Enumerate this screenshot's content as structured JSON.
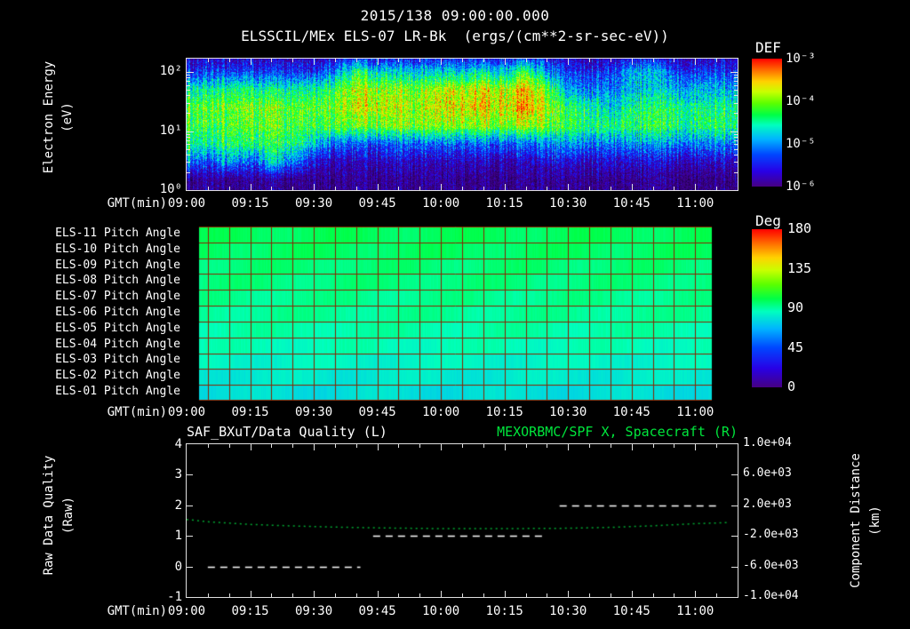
{
  "header": {
    "datetime": "2015/138 09:00:00.000",
    "instrument_title": "ELSSCIL/MEx ELS-07 LR-Bk  (ergs/(cm**2-sr-sec-eV))"
  },
  "axis": {
    "xlabel": "GMT(min)",
    "xticks": [
      "09:00",
      "09:15",
      "09:30",
      "09:45",
      "10:00",
      "10:15",
      "10:30",
      "10:45",
      "11:00"
    ]
  },
  "spectrogram_panel": {
    "ylabel_line1": "Electron Energy",
    "ylabel_line2": "(eV)",
    "yticks": [
      "10²",
      "10¹",
      "10⁰"
    ],
    "colorbar": {
      "title": "DEF",
      "ticks": [
        "10⁻³",
        "10⁻⁴",
        "10⁻⁵",
        "10⁻⁶"
      ]
    }
  },
  "pitch_panel": {
    "colorbar": {
      "title": "Deg",
      "ticks": [
        "180",
        "135",
        "90",
        "45",
        "0"
      ]
    }
  },
  "quality_panel": {
    "title_left": "SAF_BXuT/Data Quality (L)",
    "title_right": "MEXORBMC/SPF X, Spacecraft (R)",
    "ylabel_left_line1": "Raw Data Quality",
    "ylabel_left_line2": "(Raw)",
    "ylabel_right_line1": "Component Distance",
    "ylabel_right_line2": "(km)",
    "yticks_left": [
      "4",
      "3",
      "2",
      "1",
      "0",
      "-1"
    ],
    "yticks_right": [
      "1.0e+04",
      "6.0e+03",
      "2.0e+03",
      "-2.0e+03",
      "-6.0e+03",
      "-1.0e+04"
    ]
  },
  "colors": {
    "background": "#000000",
    "text": "#ffffff",
    "axis": "#e0e0e0",
    "title_green": "#00e63c",
    "series_green": "#00a832",
    "quality_white": "#ffffff",
    "grid_red": "#8a2300",
    "colormap": "rainbow"
  },
  "chart_data": [
    {
      "type": "heatmap",
      "name": "electron-energy-spectrogram",
      "title": "ELSSCIL/MEx ELS-07 LR-Bk",
      "units": "ergs/(cm**2-sr-sec-eV)",
      "colorbar_label": "DEF",
      "x_start_gmt": "09:00",
      "x_end_gmt": "11:10",
      "x_step_min": 5,
      "y_label": "Electron Energy (eV)",
      "y_scale": "log",
      "y_range_ev": [
        1,
        170
      ],
      "z_scale": "log",
      "z_log10_range": [
        -6,
        -3
      ],
      "energy_rows_ev": [
        1.5,
        3,
        6,
        12,
        25,
        50,
        100,
        200
      ],
      "log10_def_grid": [
        [
          -6.1,
          -6.0,
          -6.1,
          -6.1,
          -6.0,
          -6.1,
          -6.1,
          -6.1,
          -6.0,
          -6.1,
          -6.1,
          -6.1,
          -6.0,
          -6.1,
          -6.1,
          -6.1,
          -6.0,
          -6.1,
          -6.1,
          -6.0,
          -6.1,
          -6.1,
          -6.0,
          -6.1,
          -6.1,
          -6.1
        ],
        [
          -4.9,
          -5.5,
          -4.8,
          -5.4,
          -4.7,
          -5.1,
          -5.6,
          -5.8,
          -5.8,
          -5.8,
          -5.8,
          -5.8,
          -5.8,
          -5.8,
          -5.8,
          -5.8,
          -5.8,
          -5.7,
          -5.7,
          -5.7,
          -5.7,
          -5.7,
          -5.7,
          -5.7,
          -5.7,
          -5.7
        ],
        [
          -4.4,
          -4.6,
          -4.3,
          -4.5,
          -4.3,
          -4.4,
          -4.8,
          -5.2,
          -5.2,
          -5.3,
          -5.2,
          -5.2,
          -5.2,
          -5.2,
          -5.2,
          -5.2,
          -5.2,
          -5.1,
          -5.0,
          -5.0,
          -5.1,
          -5.0,
          -5.0,
          -5.0,
          -5.0,
          -5.0
        ],
        [
          -4.2,
          -4.3,
          -4.1,
          -4.2,
          -4.1,
          -4.2,
          -4.2,
          -4.1,
          -4.1,
          -4.0,
          -4.1,
          -4.0,
          -4.0,
          -4.0,
          -4.0,
          -4.0,
          -3.9,
          -4.1,
          -4.3,
          -4.3,
          -4.4,
          -4.3,
          -4.3,
          -4.3,
          -4.3,
          -4.3
        ],
        [
          -4.1,
          -4.2,
          -4.0,
          -4.1,
          -4.0,
          -4.1,
          -4.1,
          -4.0,
          -3.7,
          -3.8,
          -3.9,
          -3.9,
          -3.7,
          -3.7,
          -3.6,
          -3.7,
          -3.4,
          -3.9,
          -4.4,
          -4.4,
          -4.8,
          -4.4,
          -4.4,
          -4.3,
          -4.4,
          -4.4
        ],
        [
          -4.5,
          -4.6,
          -4.4,
          -4.5,
          -4.5,
          -4.5,
          -4.5,
          -4.2,
          -3.8,
          -3.9,
          -4.0,
          -4.0,
          -3.8,
          -3.8,
          -3.7,
          -3.8,
          -3.5,
          -4.1,
          -5.0,
          -5.0,
          -5.1,
          -4.8,
          -4.8,
          -4.8,
          -4.8,
          -4.8
        ],
        [
          -5.4,
          -5.4,
          -5.3,
          -5.4,
          -5.4,
          -5.4,
          -5.4,
          -5.0,
          -4.3,
          -4.7,
          -4.8,
          -4.8,
          -4.7,
          -4.7,
          -4.6,
          -4.7,
          -4.2,
          -5.0,
          -5.4,
          -5.4,
          -5.4,
          -4.9,
          -4.9,
          -5.2,
          -5.3,
          -5.3
        ],
        [
          -5.9,
          -5.9,
          -5.9,
          -5.9,
          -5.9,
          -5.9,
          -5.9,
          -5.8,
          -5.7,
          -5.8,
          -5.8,
          -5.8,
          -5.8,
          -5.8,
          -5.8,
          -5.8,
          -5.6,
          -5.8,
          -5.9,
          -5.9,
          -5.9,
          -5.8,
          -5.8,
          -5.9,
          -5.9,
          -5.9
        ]
      ]
    },
    {
      "type": "heatmap",
      "name": "pitch-angle-panels",
      "units": "Deg",
      "z_range": [
        0,
        180
      ],
      "x_data_start_gmt": "09:03",
      "x_data_end_gmt": "11:04",
      "grid_minutes": 5,
      "rows": [
        {
          "label": "ELS-11 Pitch Angle",
          "value_deg": 98
        },
        {
          "label": "ELS-10 Pitch Angle",
          "value_deg": 97
        },
        {
          "label": "ELS-09 Pitch Angle",
          "value_deg": 95
        },
        {
          "label": "ELS-08 Pitch Angle",
          "value_deg": 94
        },
        {
          "label": "ELS-07 Pitch Angle",
          "value_deg": 92
        },
        {
          "label": "ELS-06 Pitch Angle",
          "value_deg": 91
        },
        {
          "label": "ELS-05 Pitch Angle",
          "value_deg": 89
        },
        {
          "label": "ELS-04 Pitch Angle",
          "value_deg": 87
        },
        {
          "label": "ELS-03 Pitch Angle",
          "value_deg": 84
        },
        {
          "label": "ELS-02 Pitch Angle",
          "value_deg": 81
        },
        {
          "label": "ELS-01 Pitch Angle",
          "value_deg": 78
        }
      ]
    },
    {
      "type": "line",
      "name": "quality-and-distance",
      "x_start_gmt": "09:00",
      "x_end_gmt": "11:10",
      "left_axis": {
        "label": "Raw Data Quality (Raw)",
        "range": [
          -1,
          4
        ]
      },
      "right_axis": {
        "label": "Component Distance (km)",
        "range": [
          -10000,
          10000
        ]
      },
      "series": [
        {
          "name": "SAF_BXuT/Data Quality (L)",
          "axis": "left",
          "style": "dashed",
          "color": "#ffffff",
          "segments": [
            {
              "start": "09:05",
              "end": "09:41",
              "value": 0
            },
            {
              "start": "09:44",
              "end": "10:25",
              "value": 1.0
            },
            {
              "start": "10:28",
              "end": "11:06",
              "value": 2.0
            }
          ]
        },
        {
          "name": "MEXORBMC/SPF X, Spacecraft (R)",
          "axis": "right",
          "style": "dotted",
          "color": "#00a832",
          "points_gmt_km": [
            [
              "09:00",
              150
            ],
            [
              "09:05",
              -150
            ],
            [
              "09:15",
              -500
            ],
            [
              "09:25",
              -700
            ],
            [
              "09:35",
              -850
            ],
            [
              "09:45",
              -950
            ],
            [
              "10:00",
              -1050
            ],
            [
              "10:15",
              -1050
            ],
            [
              "10:30",
              -1000
            ],
            [
              "10:40",
              -880
            ],
            [
              "10:50",
              -680
            ],
            [
              "11:00",
              -400
            ],
            [
              "11:08",
              -250
            ]
          ]
        }
      ]
    }
  ]
}
